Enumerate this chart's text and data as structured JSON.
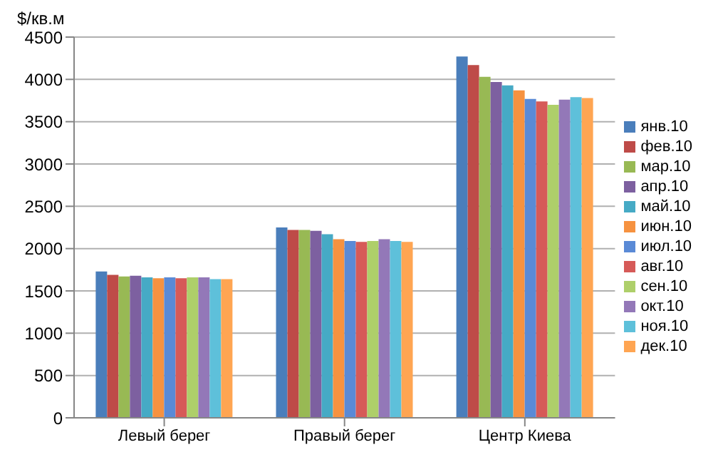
{
  "chart_data": {
    "type": "bar",
    "ylabel": "$/кв.м",
    "categories": [
      "Левый берег",
      "Правый берег",
      "Центр Киева"
    ],
    "series": [
      {
        "name": "янв.10",
        "color": "#4a7ebb",
        "values": [
          1730,
          2250,
          4270
        ]
      },
      {
        "name": "фев.10",
        "color": "#be4b48",
        "values": [
          1690,
          2220,
          4170
        ]
      },
      {
        "name": "мар.10",
        "color": "#98b954",
        "values": [
          1670,
          2220,
          4030
        ]
      },
      {
        "name": "апр.10",
        "color": "#7d60a0",
        "values": [
          1680,
          2210,
          3970
        ]
      },
      {
        "name": "май.10",
        "color": "#46aac5",
        "values": [
          1660,
          2170,
          3930
        ]
      },
      {
        "name": "июн.10",
        "color": "#f69240",
        "values": [
          1650,
          2110,
          3870
        ]
      },
      {
        "name": "июл.10",
        "color": "#5a8ad6",
        "values": [
          1660,
          2090,
          3770
        ]
      },
      {
        "name": "авг.10",
        "color": "#d65a58",
        "values": [
          1650,
          2080,
          3740
        ]
      },
      {
        "name": "сен.10",
        "color": "#aecf6a",
        "values": [
          1660,
          2090,
          3700
        ]
      },
      {
        "name": "окт.10",
        "color": "#9378b8",
        "values": [
          1660,
          2110,
          3760
        ]
      },
      {
        "name": "ноя.10",
        "color": "#5ec0da",
        "values": [
          1640,
          2090,
          3790
        ]
      },
      {
        "name": "дек.10",
        "color": "#ffa552",
        "values": [
          1640,
          2080,
          3780
        ]
      }
    ],
    "ylim": [
      0,
      4500
    ],
    "yticks": [
      0,
      500,
      1000,
      1500,
      2000,
      2500,
      3000,
      3500,
      4000,
      4500
    ],
    "grid": "y",
    "legend": "right"
  }
}
